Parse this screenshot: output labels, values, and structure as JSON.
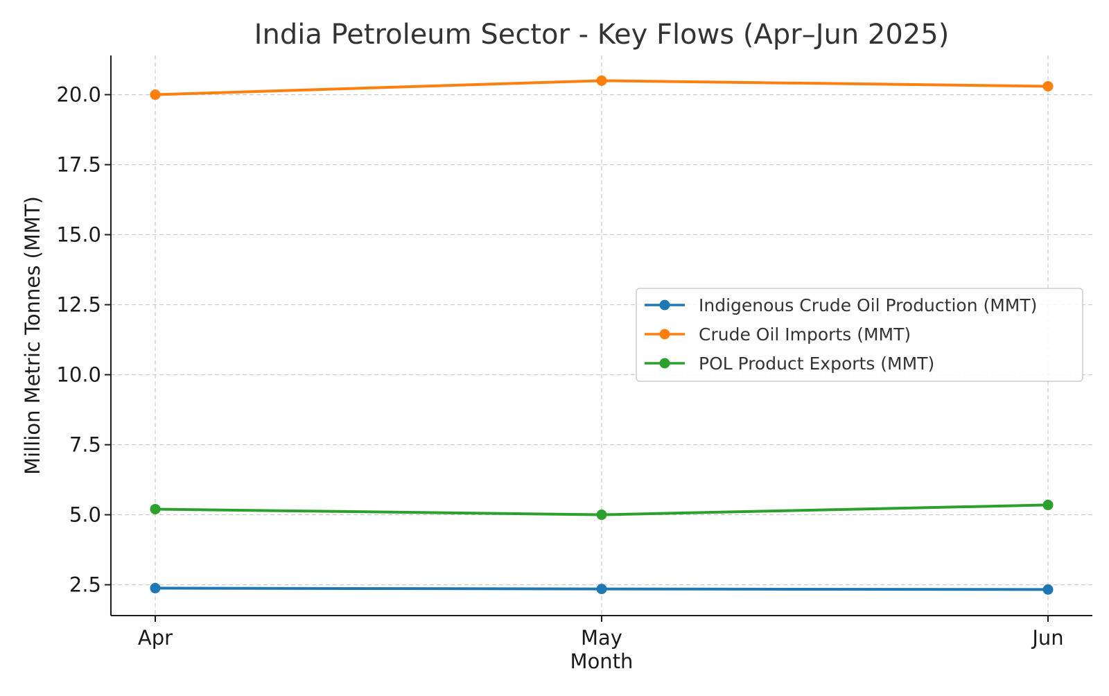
{
  "chart_data": {
    "type": "line",
    "title": "India Petroleum Sector - Key Flows (Apr–Jun 2025)",
    "xlabel": "Month",
    "ylabel": "Million Metric Tonnes (MMT)",
    "categories": [
      "Apr",
      "May",
      "Jun"
    ],
    "ylim": [
      1.4,
      21.4
    ],
    "yticks": [
      2.5,
      5.0,
      7.5,
      10.0,
      12.5,
      15.0,
      17.5,
      20.0
    ],
    "ytick_labels": [
      "2.5",
      "5.0",
      "7.5",
      "10.0",
      "12.5",
      "15.0",
      "17.5",
      "20.0"
    ],
    "grid": true,
    "legend_position": "center-right",
    "series": [
      {
        "name": "Indigenous Crude Oil Production (MMT)",
        "color": "#1f77b4",
        "values": [
          2.38,
          2.35,
          2.33
        ]
      },
      {
        "name": "Crude Oil Imports (MMT)",
        "color": "#ff7f0e",
        "values": [
          20.0,
          20.5,
          20.3
        ]
      },
      {
        "name": "POL Product Exports (MMT)",
        "color": "#2ca02c",
        "values": [
          5.2,
          5.0,
          5.35
        ]
      }
    ]
  }
}
